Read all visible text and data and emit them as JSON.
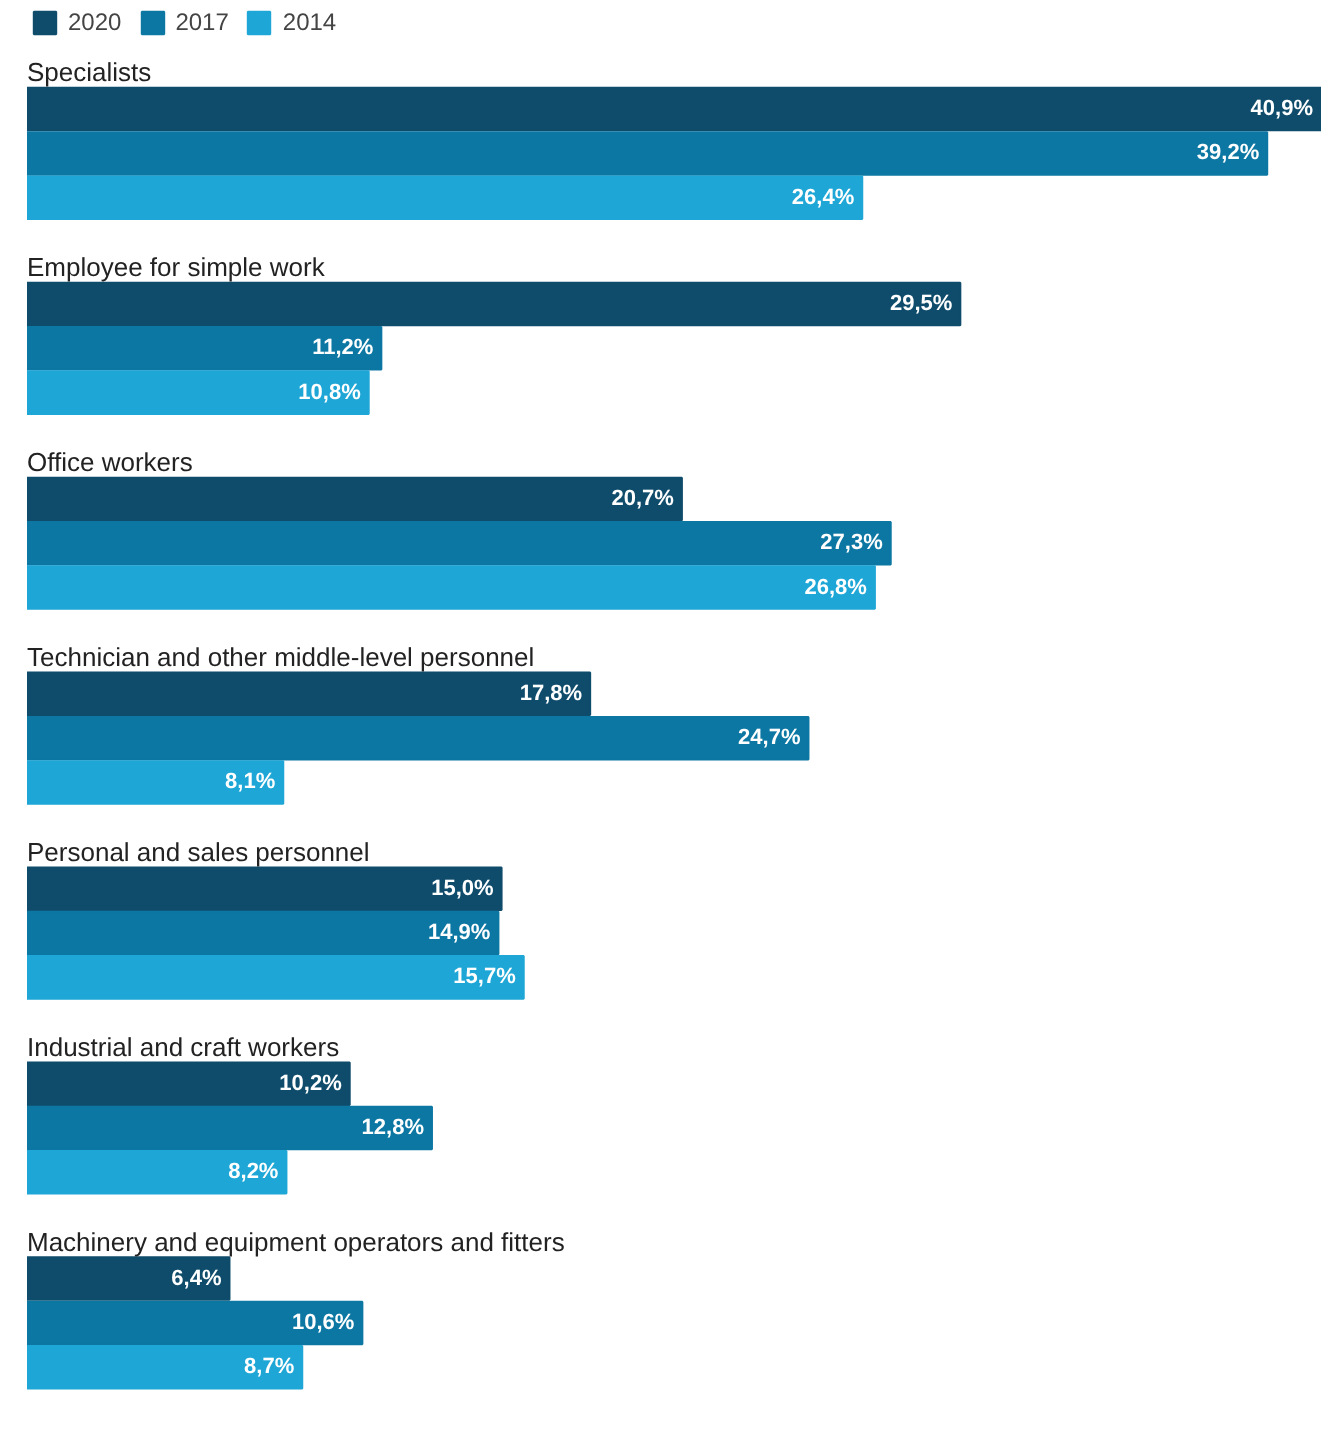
{
  "chart_data": {
    "type": "bar",
    "orientation": "horizontal",
    "legend": "top left",
    "grid": false,
    "categories": [
      "Specialists",
      "Employee for simple work",
      "Office workers",
      "Technician and other middle-level personnel",
      "Personal and sales personnel",
      "Industrial and craft workers",
      "Machinery and equipment operators and fitters"
    ],
    "series": [
      {
        "name": "2020",
        "color": "#0f4c6b",
        "values": [
          40.9,
          29.5,
          20.7,
          17.8,
          15.0,
          10.2,
          6.4
        ],
        "value_labels": [
          "40,9%",
          "29,5%",
          "20,7%",
          "17,8%",
          "15,0%",
          "10,2%",
          "6,4%"
        ]
      },
      {
        "name": "2017",
        "color": "#0c77a3",
        "values": [
          39.2,
          11.2,
          27.3,
          24.7,
          14.9,
          12.8,
          10.6
        ],
        "value_labels": [
          "39,2%",
          "11,2%",
          "27,3%",
          "24,7%",
          "14,9%",
          "12,8%",
          "10,6%"
        ]
      },
      {
        "name": "2014",
        "color": "#1ea6d6",
        "values": [
          26.4,
          10.8,
          26.8,
          8.1,
          15.7,
          8.2,
          8.7
        ],
        "value_labels": [
          "26,4%",
          "10,8%",
          "26,8%",
          "8,1%",
          "15,7%",
          "8,2%",
          "8,7%"
        ]
      }
    ]
  }
}
